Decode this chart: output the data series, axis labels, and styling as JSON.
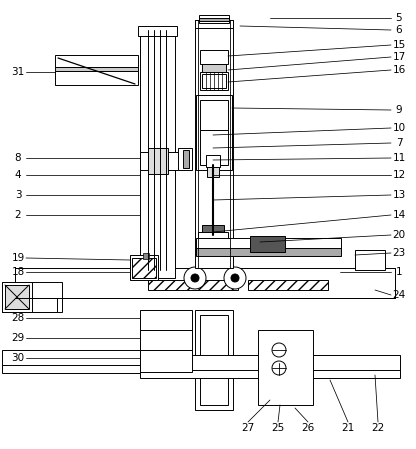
{
  "bg_color": "#ffffff",
  "line_color": "#000000",
  "fig_width": 4.16,
  "fig_height": 4.49,
  "dpi": 100,
  "right_labels": [
    "5",
    "6",
    "15",
    "17",
    "16",
    "9",
    "10",
    "7",
    "11",
    "12",
    "13",
    "14",
    "20",
    "23",
    "1",
    "24"
  ],
  "left_labels": [
    "31",
    "8",
    "4",
    "3",
    "2",
    "19",
    "18",
    "28",
    "29",
    "30"
  ],
  "bottom_labels": [
    "27",
    "25",
    "26",
    "21",
    "22"
  ]
}
